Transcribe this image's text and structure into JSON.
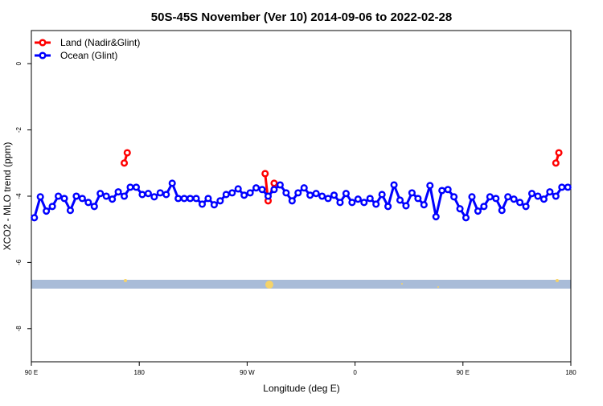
{
  "chart_data": {
    "type": "line",
    "title": "50S-45S November (Ver 10)   2014-09-06 to 2022-02-28",
    "x_label": "Longitude (deg E)",
    "y_label": "XCO2 - MLO trend (ppm)",
    "xlim": [
      90,
      540
    ],
    "ylim": [
      -9,
      1
    ],
    "xticks": [
      {
        "value": 90,
        "label": "90 E"
      },
      180,
      {
        "value": 270,
        "label": "90 W"
      },
      {
        "value": 360,
        "label": "0"
      },
      {
        "value": 450,
        "label": "90 E"
      },
      {
        "value": 540,
        "label": "180"
      }
    ],
    "yticks": [
      0,
      -2,
      -4,
      -6,
      -8
    ],
    "legend": "top-left",
    "series": [
      {
        "name": "Land (Nadir&Glint)",
        "color": "#ff0000",
        "x": [
          167.5,
          170,
          null,
          285,
          287.5,
          292.5,
          null,
          527.5,
          530
        ],
        "values": [
          -3.0,
          -2.69,
          null,
          -3.32,
          -4.14,
          -3.61,
          null,
          -3.0,
          -2.69
        ]
      },
      {
        "name": "Ocean (Glint)",
        "color": "#0000ff",
        "x": [
          92.5,
          97.5,
          102.5,
          107.5,
          112.5,
          117.5,
          122.5,
          127.5,
          132.5,
          137.5,
          142.5,
          147.5,
          152.5,
          157.5,
          162.5,
          167.5,
          172.5,
          177.5,
          182.5,
          187.5,
          192.5,
          197.5,
          202.5,
          207.5,
          212.5,
          217.5,
          222.5,
          227.5,
          232.5,
          237.5,
          242.5,
          247.5,
          252.5,
          257.5,
          262.5,
          267.5,
          272.5,
          277.5,
          282.5,
          287.5,
          292.5,
          297.5,
          302.5,
          307.5,
          312.5,
          317.5,
          322.5,
          327.5,
          332.5,
          337.5,
          342.5,
          347.5,
          352.5,
          357.5,
          362.5,
          367.5,
          372.5,
          377.5,
          382.5,
          387.5,
          392.5,
          397.5,
          402.5,
          407.5,
          412.5,
          417.5,
          422.5,
          427.5,
          432.5,
          437.5,
          442.5,
          447.5,
          452.5,
          457.5,
          462.5,
          467.5,
          472.5,
          477.5,
          482.5,
          487.5,
          492.5,
          497.5,
          502.5,
          507.5,
          512.5,
          517.5,
          522.5,
          527.5,
          532.5,
          537.5
        ],
        "values": [
          -4.65,
          -4.02,
          -4.45,
          -4.31,
          -4.0,
          -4.07,
          -4.43,
          -4.0,
          -4.07,
          -4.19,
          -4.31,
          -3.92,
          -4.0,
          -4.09,
          -3.87,
          -4.0,
          -3.73,
          -3.73,
          -3.95,
          -3.92,
          -4.02,
          -3.9,
          -3.95,
          -3.61,
          -4.07,
          -4.07,
          -4.07,
          -4.07,
          -4.24,
          -4.07,
          -4.26,
          -4.14,
          -3.95,
          -3.9,
          -3.78,
          -3.97,
          -3.9,
          -3.75,
          -3.8,
          -4.0,
          -3.8,
          -3.66,
          -3.9,
          -4.14,
          -3.9,
          -3.75,
          -3.97,
          -3.92,
          -4.0,
          -4.07,
          -3.97,
          -4.19,
          -3.92,
          -4.19,
          -4.09,
          -4.19,
          -4.07,
          -4.24,
          -3.95,
          -4.31,
          -3.66,
          -4.12,
          -4.29,
          -3.9,
          -4.07,
          -4.26,
          -3.68,
          -4.62,
          -3.83,
          -3.8,
          -4.02,
          -4.38,
          -4.65,
          -4.02,
          -4.45,
          -4.31,
          -4.02,
          -4.07,
          -4.43,
          -4.02,
          -4.09,
          -4.19,
          -4.31,
          -3.92,
          -4.0,
          -4.09,
          -3.87,
          -4.0,
          -3.73,
          -3.73
        ]
      }
    ]
  }
}
